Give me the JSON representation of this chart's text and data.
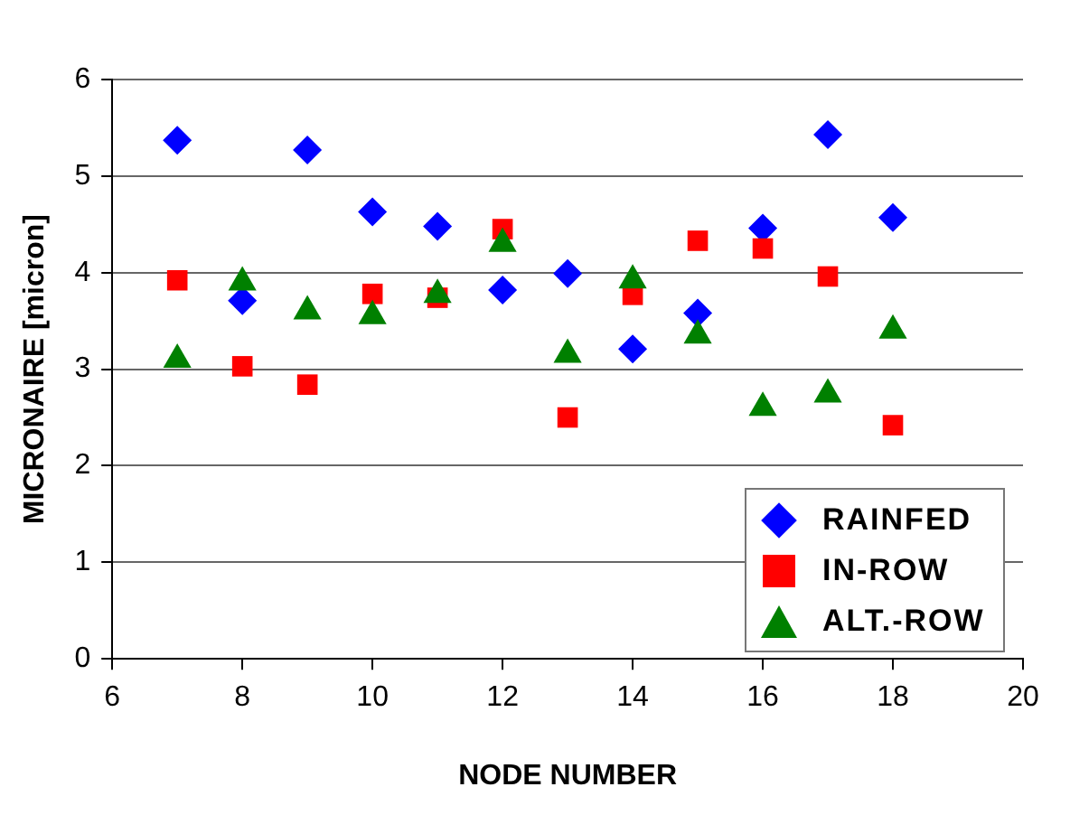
{
  "chart_data": {
    "type": "scatter",
    "xlabel": "NODE NUMBER",
    "ylabel": "MICRONAIRE [micron]",
    "x": [
      7,
      8,
      9,
      10,
      11,
      12,
      13,
      14,
      15,
      16,
      17,
      18
    ],
    "series": [
      {
        "name": "RAINFED",
        "color": "#0000ff",
        "marker": "diamond",
        "values": [
          5.37,
          3.71,
          5.27,
          4.63,
          4.48,
          3.82,
          3.99,
          3.21,
          3.58,
          4.46,
          5.43,
          4.57
        ]
      },
      {
        "name": "IN-ROW",
        "color": "#ff0000",
        "marker": "square",
        "values": [
          3.92,
          3.03,
          2.84,
          3.78,
          3.74,
          4.45,
          2.5,
          3.77,
          4.33,
          4.25,
          3.96,
          2.42
        ]
      },
      {
        "name": "ALT.-ROW",
        "color": "#008000",
        "marker": "triangle",
        "values": [
          3.1,
          3.9,
          3.6,
          3.55,
          3.77,
          4.3,
          3.15,
          3.92,
          3.35,
          2.6,
          2.74,
          3.4
        ]
      }
    ],
    "xlim": [
      6,
      20
    ],
    "xticks": [
      6,
      8,
      10,
      12,
      14,
      16,
      18,
      20
    ],
    "ylim": [
      0,
      6
    ],
    "yticks": [
      0,
      1,
      2,
      3,
      4,
      5,
      6
    ],
    "grid": "y",
    "legend": "bottom right"
  }
}
